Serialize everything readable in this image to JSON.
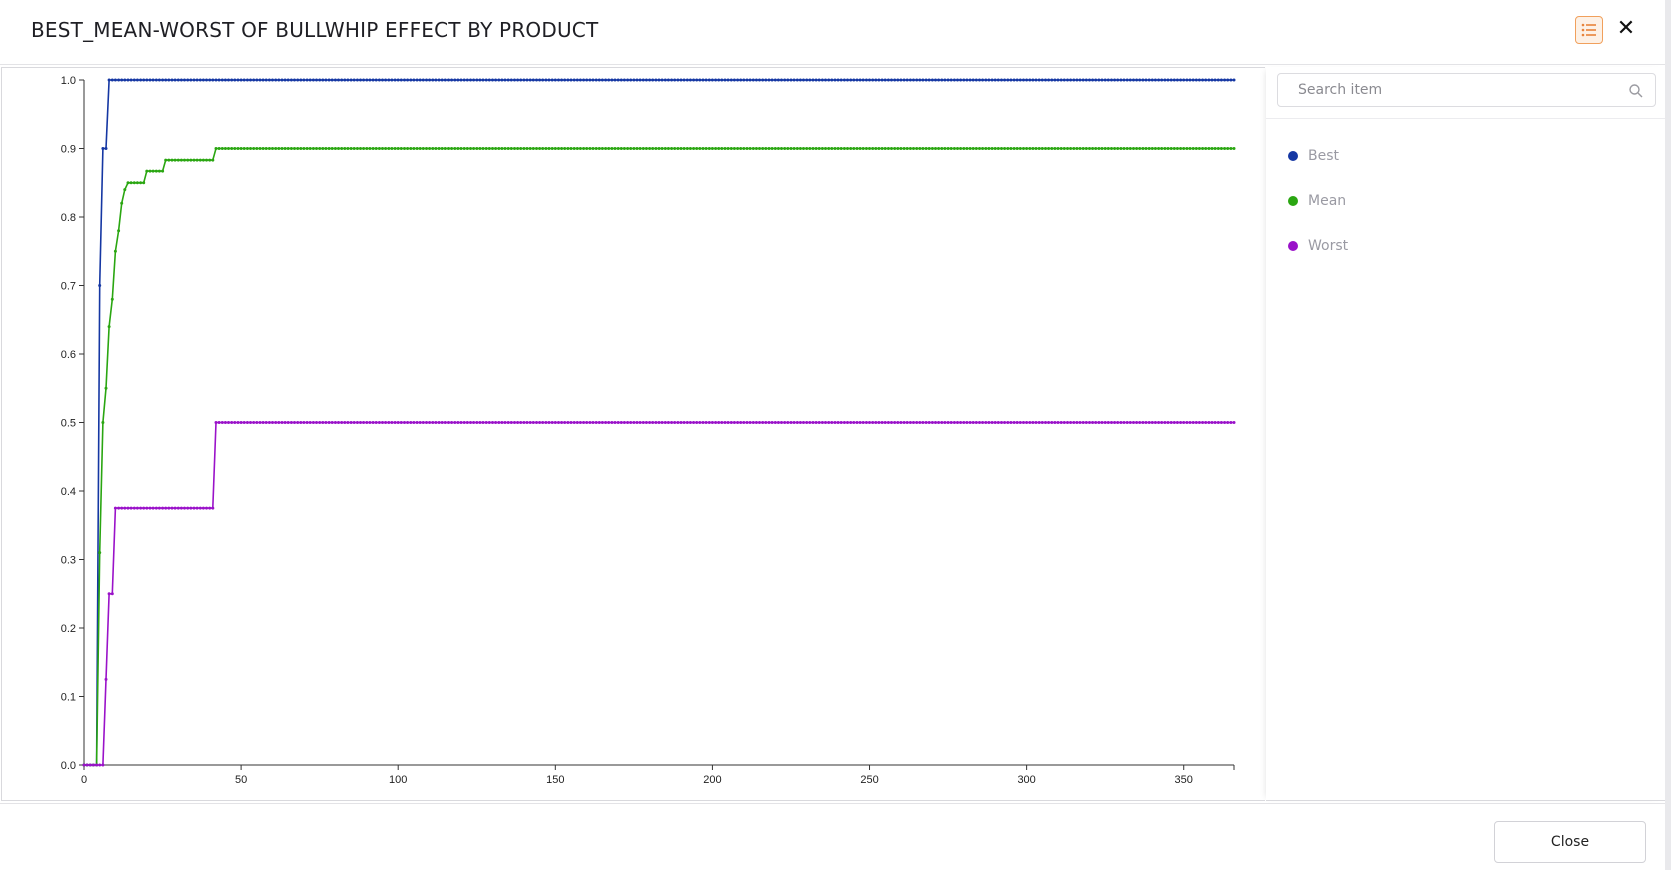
{
  "dialog": {
    "title": "BEST_MEAN-WORST OF BULLWHIP EFFECT BY PRODUCT",
    "close_label": "Close"
  },
  "sidebar": {
    "search_placeholder": "Search item",
    "items": [
      {
        "label": "Best",
        "color": "#1537a3"
      },
      {
        "label": "Mean",
        "color": "#2aa611"
      },
      {
        "label": "Worst",
        "color": "#9a12c9"
      }
    ]
  },
  "icons": {
    "legend_toggle": "list-icon",
    "close": "close-icon",
    "search": "search-icon"
  },
  "chart_data": {
    "type": "line",
    "title": "",
    "xlabel": "",
    "ylabel": "",
    "xlim": [
      0,
      366
    ],
    "ylim": [
      0,
      1.0
    ],
    "x_ticks": [
      0,
      50,
      100,
      150,
      200,
      250,
      300,
      350
    ],
    "y_ticks": [
      0.0,
      0.1,
      0.2,
      0.3,
      0.4,
      0.5,
      0.6,
      0.7,
      0.8,
      0.9,
      1.0
    ],
    "x_tick_labels": [
      "0",
      "50",
      "100",
      "150",
      "200",
      "250",
      "300",
      "350"
    ],
    "y_tick_labels": [
      "0.0",
      "0.1",
      "0.2",
      "0.3",
      "0.4",
      "0.5",
      "0.6",
      "0.7",
      "0.8",
      "0.9",
      "1.0"
    ],
    "grid": false,
    "legend": "right-panel",
    "series": [
      {
        "name": "Best",
        "color": "#1537a3",
        "points": [
          [
            0,
            0
          ],
          [
            4,
            0
          ],
          [
            5,
            0.7
          ],
          [
            6,
            0.9
          ],
          [
            7,
            0.9
          ],
          [
            8,
            1.0
          ],
          [
            366,
            1.0
          ]
        ]
      },
      {
        "name": "Mean",
        "color": "#2aa611",
        "points": [
          [
            0,
            0
          ],
          [
            4,
            0
          ],
          [
            5,
            0.31
          ],
          [
            6,
            0.5
          ],
          [
            7,
            0.55
          ],
          [
            8,
            0.64
          ],
          [
            9,
            0.68
          ],
          [
            10,
            0.75
          ],
          [
            11,
            0.78
          ],
          [
            12,
            0.82
          ],
          [
            13,
            0.84
          ],
          [
            14,
            0.85
          ],
          [
            19,
            0.85
          ],
          [
            20,
            0.867
          ],
          [
            25,
            0.867
          ],
          [
            26,
            0.883
          ],
          [
            41,
            0.883
          ],
          [
            42,
            0.9
          ],
          [
            366,
            0.9
          ]
        ]
      },
      {
        "name": "Worst",
        "color": "#9a12c9",
        "points": [
          [
            0,
            0
          ],
          [
            6,
            0
          ],
          [
            7,
            0.125
          ],
          [
            8,
            0.25
          ],
          [
            9,
            0.25
          ],
          [
            10,
            0.375
          ],
          [
            41,
            0.375
          ],
          [
            42,
            0.5
          ],
          [
            366,
            0.5
          ]
        ]
      }
    ]
  }
}
